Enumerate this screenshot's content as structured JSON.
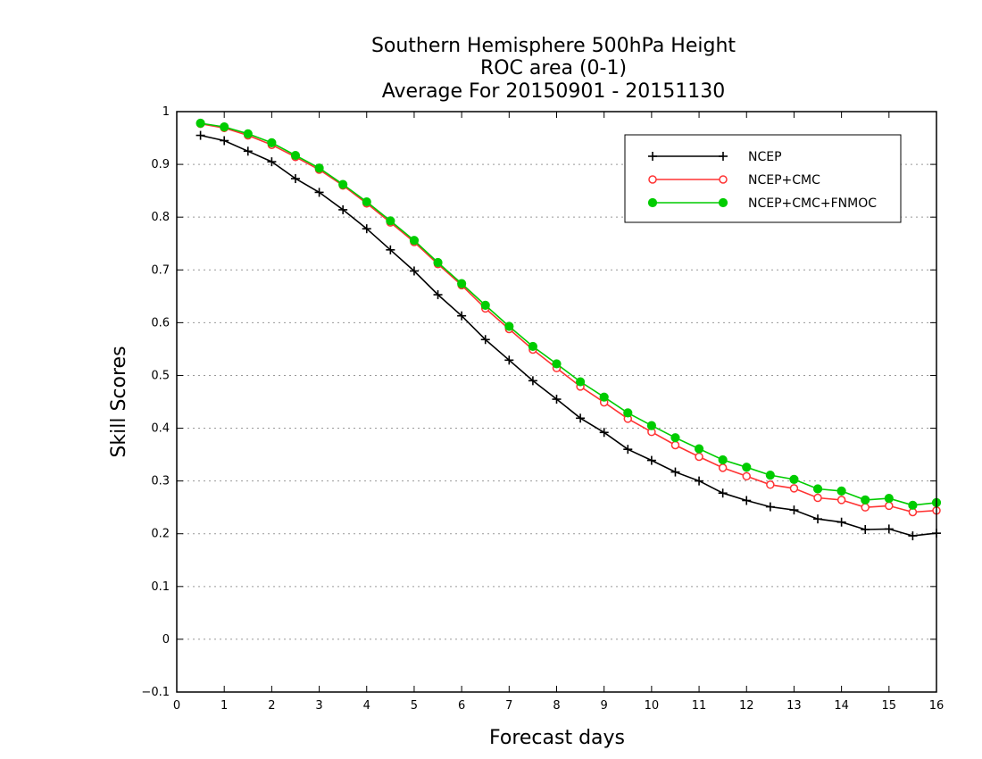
{
  "chart_data": {
    "type": "line",
    "title": [
      "Southern Hemisphere 500hPa Height",
      "ROC area (0-1)",
      "Average For 20150901 - 20151130"
    ],
    "xlabel": "Forecast days",
    "ylabel": "Skill Scores",
    "xlim": [
      0,
      16
    ],
    "ylim": [
      -0.1,
      1
    ],
    "x_ticks": [
      "0",
      "1",
      "2",
      "3",
      "4",
      "5",
      "6",
      "7",
      "8",
      "9",
      "10",
      "11",
      "12",
      "13",
      "14",
      "15",
      "16"
    ],
    "y_ticks": [
      "−0.1",
      "0",
      "0.1",
      "0.2",
      "0.3",
      "0.4",
      "0.5",
      "0.6",
      "0.7",
      "0.8",
      "0.9",
      "1"
    ],
    "y_tick_values": [
      -0.1,
      0,
      0.1,
      0.2,
      0.3,
      0.4,
      0.5,
      0.6,
      0.7,
      0.8,
      0.9,
      1
    ],
    "grid": "horizontal dotted",
    "legend_position": "top-right",
    "x": [
      0.5,
      1,
      1.5,
      2,
      2.5,
      3,
      3.5,
      4,
      4.5,
      5,
      5.5,
      6,
      6.5,
      7,
      7.5,
      8,
      8.5,
      9,
      9.5,
      10,
      10.5,
      11,
      11.5,
      12,
      12.5,
      13,
      13.5,
      14,
      14.5,
      15,
      15.5,
      16
    ],
    "series": [
      {
        "name": "NCEP",
        "color": "#000000",
        "marker": "plus",
        "values": [
          0.955,
          0.945,
          0.925,
          0.905,
          0.873,
          0.847,
          0.814,
          0.778,
          0.738,
          0.698,
          0.653,
          0.613,
          0.568,
          0.529,
          0.49,
          0.455,
          0.419,
          0.392,
          0.36,
          0.339,
          0.317,
          0.3,
          0.277,
          0.263,
          0.251,
          0.245,
          0.228,
          0.222,
          0.208,
          0.209,
          0.196,
          0.201
        ]
      },
      {
        "name": "NCEP+CMC",
        "color": "#ff3333",
        "marker": "open-circle",
        "values": [
          0.977,
          0.969,
          0.955,
          0.937,
          0.914,
          0.89,
          0.86,
          0.826,
          0.79,
          0.753,
          0.711,
          0.671,
          0.627,
          0.588,
          0.549,
          0.514,
          0.479,
          0.449,
          0.418,
          0.393,
          0.368,
          0.346,
          0.325,
          0.309,
          0.293,
          0.286,
          0.268,
          0.264,
          0.25,
          0.253,
          0.241,
          0.244
        ]
      },
      {
        "name": "NCEP+CMC+FNMOC",
        "color": "#00cc00",
        "marker": "filled-circle",
        "values": [
          0.978,
          0.971,
          0.958,
          0.941,
          0.917,
          0.893,
          0.862,
          0.829,
          0.793,
          0.756,
          0.714,
          0.674,
          0.633,
          0.593,
          0.555,
          0.522,
          0.488,
          0.459,
          0.429,
          0.405,
          0.382,
          0.361,
          0.34,
          0.326,
          0.311,
          0.303,
          0.285,
          0.281,
          0.264,
          0.267,
          0.254,
          0.259
        ]
      }
    ]
  }
}
